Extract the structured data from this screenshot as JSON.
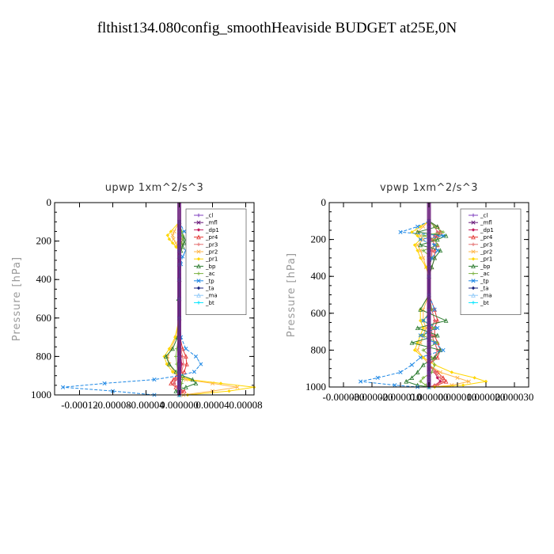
{
  "title": "flthist134.080config_smoothHeaviside  BUDGET at25E,0N",
  "chart_data": [
    {
      "type": "line",
      "title": "upwp   1xm^2/s^3",
      "ylabel": "Pressure [hPa]",
      "xlim": [
        -0.00015,
        9e-05
      ],
      "ylim": [
        1000,
        0
      ],
      "xticks": [
        "-0.00012",
        "-0.00008",
        "-0.00004",
        "0.000000",
        "0.00004",
        "0.00008"
      ],
      "xtick_values": [
        -0.00012,
        -8e-05,
        -4e-05,
        0,
        4e-05,
        8e-05
      ],
      "yticks": [
        "0",
        "200",
        "400",
        "600",
        "800",
        "1000"
      ],
      "ytick_values": [
        0,
        200,
        400,
        600,
        800,
        1000
      ],
      "legend_placement": "top-right",
      "pressure": [
        100,
        150,
        170,
        190,
        210,
        230,
        250,
        280,
        320,
        400,
        500,
        600,
        700,
        760,
        800,
        840,
        880,
        900,
        920,
        940,
        960,
        980,
        1000
      ],
      "series": [
        {
          "name": "_cl",
          "color": "#7f3fbf",
          "values": [
            0,
            0,
            0,
            0,
            0,
            0,
            0,
            0,
            0,
            0,
            0,
            0,
            0,
            0,
            0,
            0,
            0,
            0,
            0,
            0,
            0,
            0,
            0
          ]
        },
        {
          "name": "_mfl",
          "color": "#6a1b7a",
          "values": [
            0,
            0,
            0,
            0,
            0,
            0,
            0,
            0,
            0,
            0,
            0,
            0,
            0,
            0,
            0,
            0,
            0,
            0,
            0,
            0,
            0,
            0,
            0
          ]
        },
        {
          "name": "_dp1",
          "color": "#c2185b",
          "values": [
            0,
            0,
            0,
            1e-06,
            1e-06,
            0,
            0,
            0,
            0,
            0,
            0,
            0,
            0,
            0,
            2e-06,
            3e-06,
            2e-06,
            0,
            -4e-06,
            -6e-06,
            -2e-06,
            3e-06,
            0
          ]
        },
        {
          "name": "_pr4",
          "color": "#e53935",
          "values": [
            0,
            0,
            0,
            2e-06,
            2e-06,
            1e-06,
            0,
            0,
            0,
            0,
            0,
            0,
            1e-06,
            4e-06,
            8e-06,
            9e-06,
            6e-06,
            -3e-06,
            -7e-06,
            -1e-05,
            -4e-06,
            6e-06,
            0
          ]
        },
        {
          "name": "_pr3",
          "color": "#e57373",
          "values": [
            0,
            0,
            0,
            1e-06,
            1e-06,
            0,
            0,
            0,
            0,
            0,
            0,
            0,
            0,
            2e-06,
            4e-06,
            5e-06,
            3e-06,
            0,
            -4e-06,
            -6e-06,
            -2e-06,
            3e-06,
            0
          ]
        },
        {
          "name": "_pr2",
          "color": "#ffb74d",
          "values": [
            0,
            -6e-06,
            -8e-06,
            -7e-06,
            -4e-06,
            -2e-06,
            0,
            0,
            0,
            0,
            0,
            0,
            -4e-06,
            -1e-05,
            -1.4e-05,
            -1.2e-05,
            -6e-06,
            0,
            8e-06,
            4e-05,
            7e-05,
            4e-05,
            5e-06
          ]
        },
        {
          "name": "_pr1",
          "color": "#ffd600",
          "values": [
            0,
            -1e-05,
            -1.4e-05,
            -1.2e-05,
            -8e-06,
            -4e-06,
            0,
            0,
            0,
            0,
            0,
            0,
            -5e-06,
            -1.2e-05,
            -1.8e-05,
            -1.5e-05,
            -8e-06,
            0,
            1.2e-05,
            5e-05,
            9e-05,
            6e-05,
            1e-05
          ]
        },
        {
          "name": "_bp",
          "color": "#2e7d32",
          "values": [
            0,
            2e-06,
            4e-06,
            6e-06,
            6e-06,
            4e-06,
            2e-06,
            0,
            0,
            0,
            -1e-06,
            0,
            -2e-06,
            -8e-06,
            -1.6e-05,
            -1.2e-05,
            -4e-06,
            4e-06,
            1.6e-05,
            2e-05,
            8e-06,
            -4e-06,
            0
          ]
        },
        {
          "name": "_ac",
          "color": "#7cb342",
          "values": [
            0,
            3e-06,
            4e-06,
            4e-06,
            3e-06,
            2e-06,
            1e-06,
            0,
            0,
            0,
            0,
            0,
            -1e-06,
            -3e-06,
            -4e-06,
            -3e-06,
            -2e-06,
            2e-06,
            4e-06,
            3e-06,
            2e-06,
            0,
            0
          ]
        },
        {
          "name": "_tp",
          "color": "#1e88e5",
          "values": [
            0,
            6e-06,
            1.2e-05,
            1.6e-05,
            1.6e-05,
            1.2e-05,
            8e-06,
            4e-06,
            2e-06,
            0,
            0,
            0,
            2e-06,
            8e-06,
            2e-05,
            2.6e-05,
            1.8e-05,
            0,
            -3e-05,
            -9e-05,
            -0.00014,
            -8e-05,
            -3e-05
          ]
        },
        {
          "name": "_ta",
          "color": "#1a237e",
          "values": [
            0,
            0,
            0,
            0,
            0,
            0,
            0,
            0,
            0,
            0,
            0,
            0,
            0,
            0,
            0,
            0,
            0,
            0,
            0,
            0,
            0,
            0,
            0
          ]
        },
        {
          "name": "_ma",
          "color": "#90caf9",
          "values": [
            0,
            0,
            0,
            0,
            0,
            0,
            0,
            0,
            0,
            0,
            0,
            0,
            0,
            0,
            0,
            0,
            0,
            0,
            0,
            0,
            0,
            0,
            0
          ]
        },
        {
          "name": "_bt",
          "color": "#00e5ff",
          "values": [
            0,
            0,
            0,
            0,
            0,
            0,
            0,
            0,
            0,
            0,
            0,
            0,
            0,
            0,
            0,
            0,
            0,
            0,
            0,
            0,
            0,
            0,
            0
          ]
        }
      ]
    },
    {
      "type": "line",
      "title": "vpwp   1xm^2/s^3",
      "ylabel": "Pressure [hPa]",
      "xlim": [
        -3.5e-05,
        3.5e-05
      ],
      "ylim": [
        1000,
        0
      ],
      "xticks": [
        "-0.000030",
        "-0.000020",
        "-0.000010",
        "0.000000",
        "0.000010",
        "0.000020",
        "0.000030"
      ],
      "xtick_values": [
        -3e-05,
        -2e-05,
        -1e-05,
        0,
        1e-05,
        2e-05,
        3e-05
      ],
      "yticks": [
        "0",
        "200",
        "400",
        "600",
        "800",
        "1000"
      ],
      "ytick_values": [
        0,
        200,
        400,
        600,
        800,
        1000
      ],
      "legend_placement": "top-right",
      "pressure": [
        100,
        130,
        160,
        180,
        200,
        230,
        260,
        300,
        350,
        400,
        500,
        580,
        640,
        680,
        720,
        760,
        800,
        840,
        880,
        920,
        950,
        970,
        990,
        1000
      ],
      "series": [
        {
          "name": "_cl",
          "color": "#7f3fbf",
          "values": [
            0,
            0,
            0,
            0,
            0,
            0,
            0,
            0,
            0,
            0,
            0,
            0,
            0,
            0,
            0,
            0,
            0,
            0,
            0,
            0,
            0,
            0,
            0,
            0
          ]
        },
        {
          "name": "_mfl",
          "color": "#6a1b7a",
          "values": [
            0,
            0,
            0,
            0,
            0,
            0,
            0,
            0,
            0,
            0,
            0,
            0,
            0,
            0,
            0,
            0,
            0,
            0,
            0,
            0,
            0,
            0,
            0,
            0
          ]
        },
        {
          "name": "_dp1",
          "color": "#c2185b",
          "values": [
            0,
            2e-06,
            3e-06,
            2e-06,
            1e-06,
            2e-06,
            1e-06,
            1e-06,
            0,
            0,
            0,
            1e-06,
            2e-06,
            1e-06,
            1e-06,
            2e-06,
            3e-06,
            2e-06,
            0,
            2e-06,
            3e-06,
            4e-06,
            2e-06,
            0
          ]
        },
        {
          "name": "_pr4",
          "color": "#e53935",
          "values": [
            0,
            3e-06,
            4e-06,
            3e-06,
            2e-06,
            3e-06,
            2e-06,
            2e-06,
            1e-06,
            0,
            0,
            2e-06,
            3e-06,
            2e-06,
            2e-06,
            3e-06,
            4e-06,
            3e-06,
            0,
            3e-06,
            5e-06,
            6e-06,
            3e-06,
            0
          ]
        },
        {
          "name": "_pr3",
          "color": "#e57373",
          "values": [
            0,
            2e-06,
            3e-06,
            2e-06,
            1e-06,
            2e-06,
            1e-06,
            1e-06,
            0,
            0,
            0,
            1e-06,
            2e-06,
            1e-06,
            1e-06,
            2e-06,
            3e-06,
            2e-06,
            0,
            2e-06,
            4e-06,
            5e-06,
            2e-06,
            0
          ]
        },
        {
          "name": "_pr2",
          "color": "#ffb74d",
          "values": [
            0,
            -2e-06,
            -4e-06,
            -3e-06,
            -2e-06,
            -4e-06,
            -3e-06,
            -2e-06,
            -1e-06,
            0,
            0,
            -2e-06,
            -2e-06,
            -1e-06,
            -2e-06,
            -3e-06,
            -4e-06,
            -2e-06,
            0,
            4e-06,
            1e-05,
            1.4e-05,
            8e-06,
            0
          ]
        },
        {
          "name": "_pr1",
          "color": "#ffd600",
          "values": [
            0,
            -3e-06,
            -6e-06,
            -4e-06,
            -3e-06,
            -5e-06,
            -4e-06,
            -3e-06,
            -1e-06,
            0,
            0,
            -3e-06,
            -3e-06,
            -2e-06,
            -3e-06,
            -4e-06,
            -5e-06,
            -2e-06,
            2e-06,
            8e-06,
            1.6e-05,
            2e-05,
            1.2e-05,
            2e-06
          ]
        },
        {
          "name": "_bp",
          "color": "#2e7d32",
          "values": [
            0,
            3e-06,
            -4e-06,
            6e-06,
            3e-06,
            -3e-06,
            4e-06,
            2e-06,
            1e-06,
            0,
            0,
            -3e-06,
            6e-06,
            -4e-06,
            3e-06,
            -6e-06,
            4e-06,
            2e-06,
            -2e-06,
            -4e-06,
            -6e-06,
            -8e-06,
            -4e-06,
            0
          ]
        },
        {
          "name": "_ac",
          "color": "#7cb342",
          "values": [
            0,
            2e-06,
            5e-06,
            -2e-06,
            2e-06,
            3e-06,
            -2e-06,
            1e-06,
            0,
            0,
            0,
            1e-06,
            -2e-06,
            2e-06,
            -2e-06,
            3e-06,
            -2e-06,
            1e-06,
            2e-06,
            1e-06,
            -2e-06,
            -3e-06,
            -1e-06,
            0
          ]
        },
        {
          "name": "_tp",
          "color": "#1e88e5",
          "values": [
            0,
            -4e-06,
            -1e-05,
            5e-06,
            -3e-06,
            2e-06,
            3e-06,
            1e-06,
            0,
            0,
            0,
            2e-06,
            -2e-06,
            3e-06,
            -3e-06,
            2e-06,
            5e-06,
            -3e-06,
            -6e-06,
            -1e-05,
            -1.8e-05,
            -2.4e-05,
            -1.2e-05,
            -4e-06
          ]
        },
        {
          "name": "_ta",
          "color": "#1a237e",
          "values": [
            0,
            0,
            0,
            0,
            0,
            0,
            0,
            0,
            0,
            0,
            0,
            0,
            0,
            0,
            0,
            0,
            0,
            0,
            0,
            0,
            0,
            0,
            0,
            0
          ]
        },
        {
          "name": "_ma",
          "color": "#90caf9",
          "values": [
            0,
            0,
            0,
            0,
            0,
            0,
            0,
            0,
            0,
            0,
            0,
            0,
            0,
            0,
            0,
            0,
            0,
            0,
            0,
            0,
            0,
            0,
            0,
            0
          ]
        },
        {
          "name": "_bt",
          "color": "#00e5ff",
          "values": [
            0,
            0,
            0,
            0,
            0,
            0,
            0,
            0,
            0,
            0,
            0,
            0,
            0,
            0,
            0,
            0,
            0,
            0,
            0,
            0,
            0,
            0,
            0,
            0
          ]
        }
      ]
    }
  ]
}
